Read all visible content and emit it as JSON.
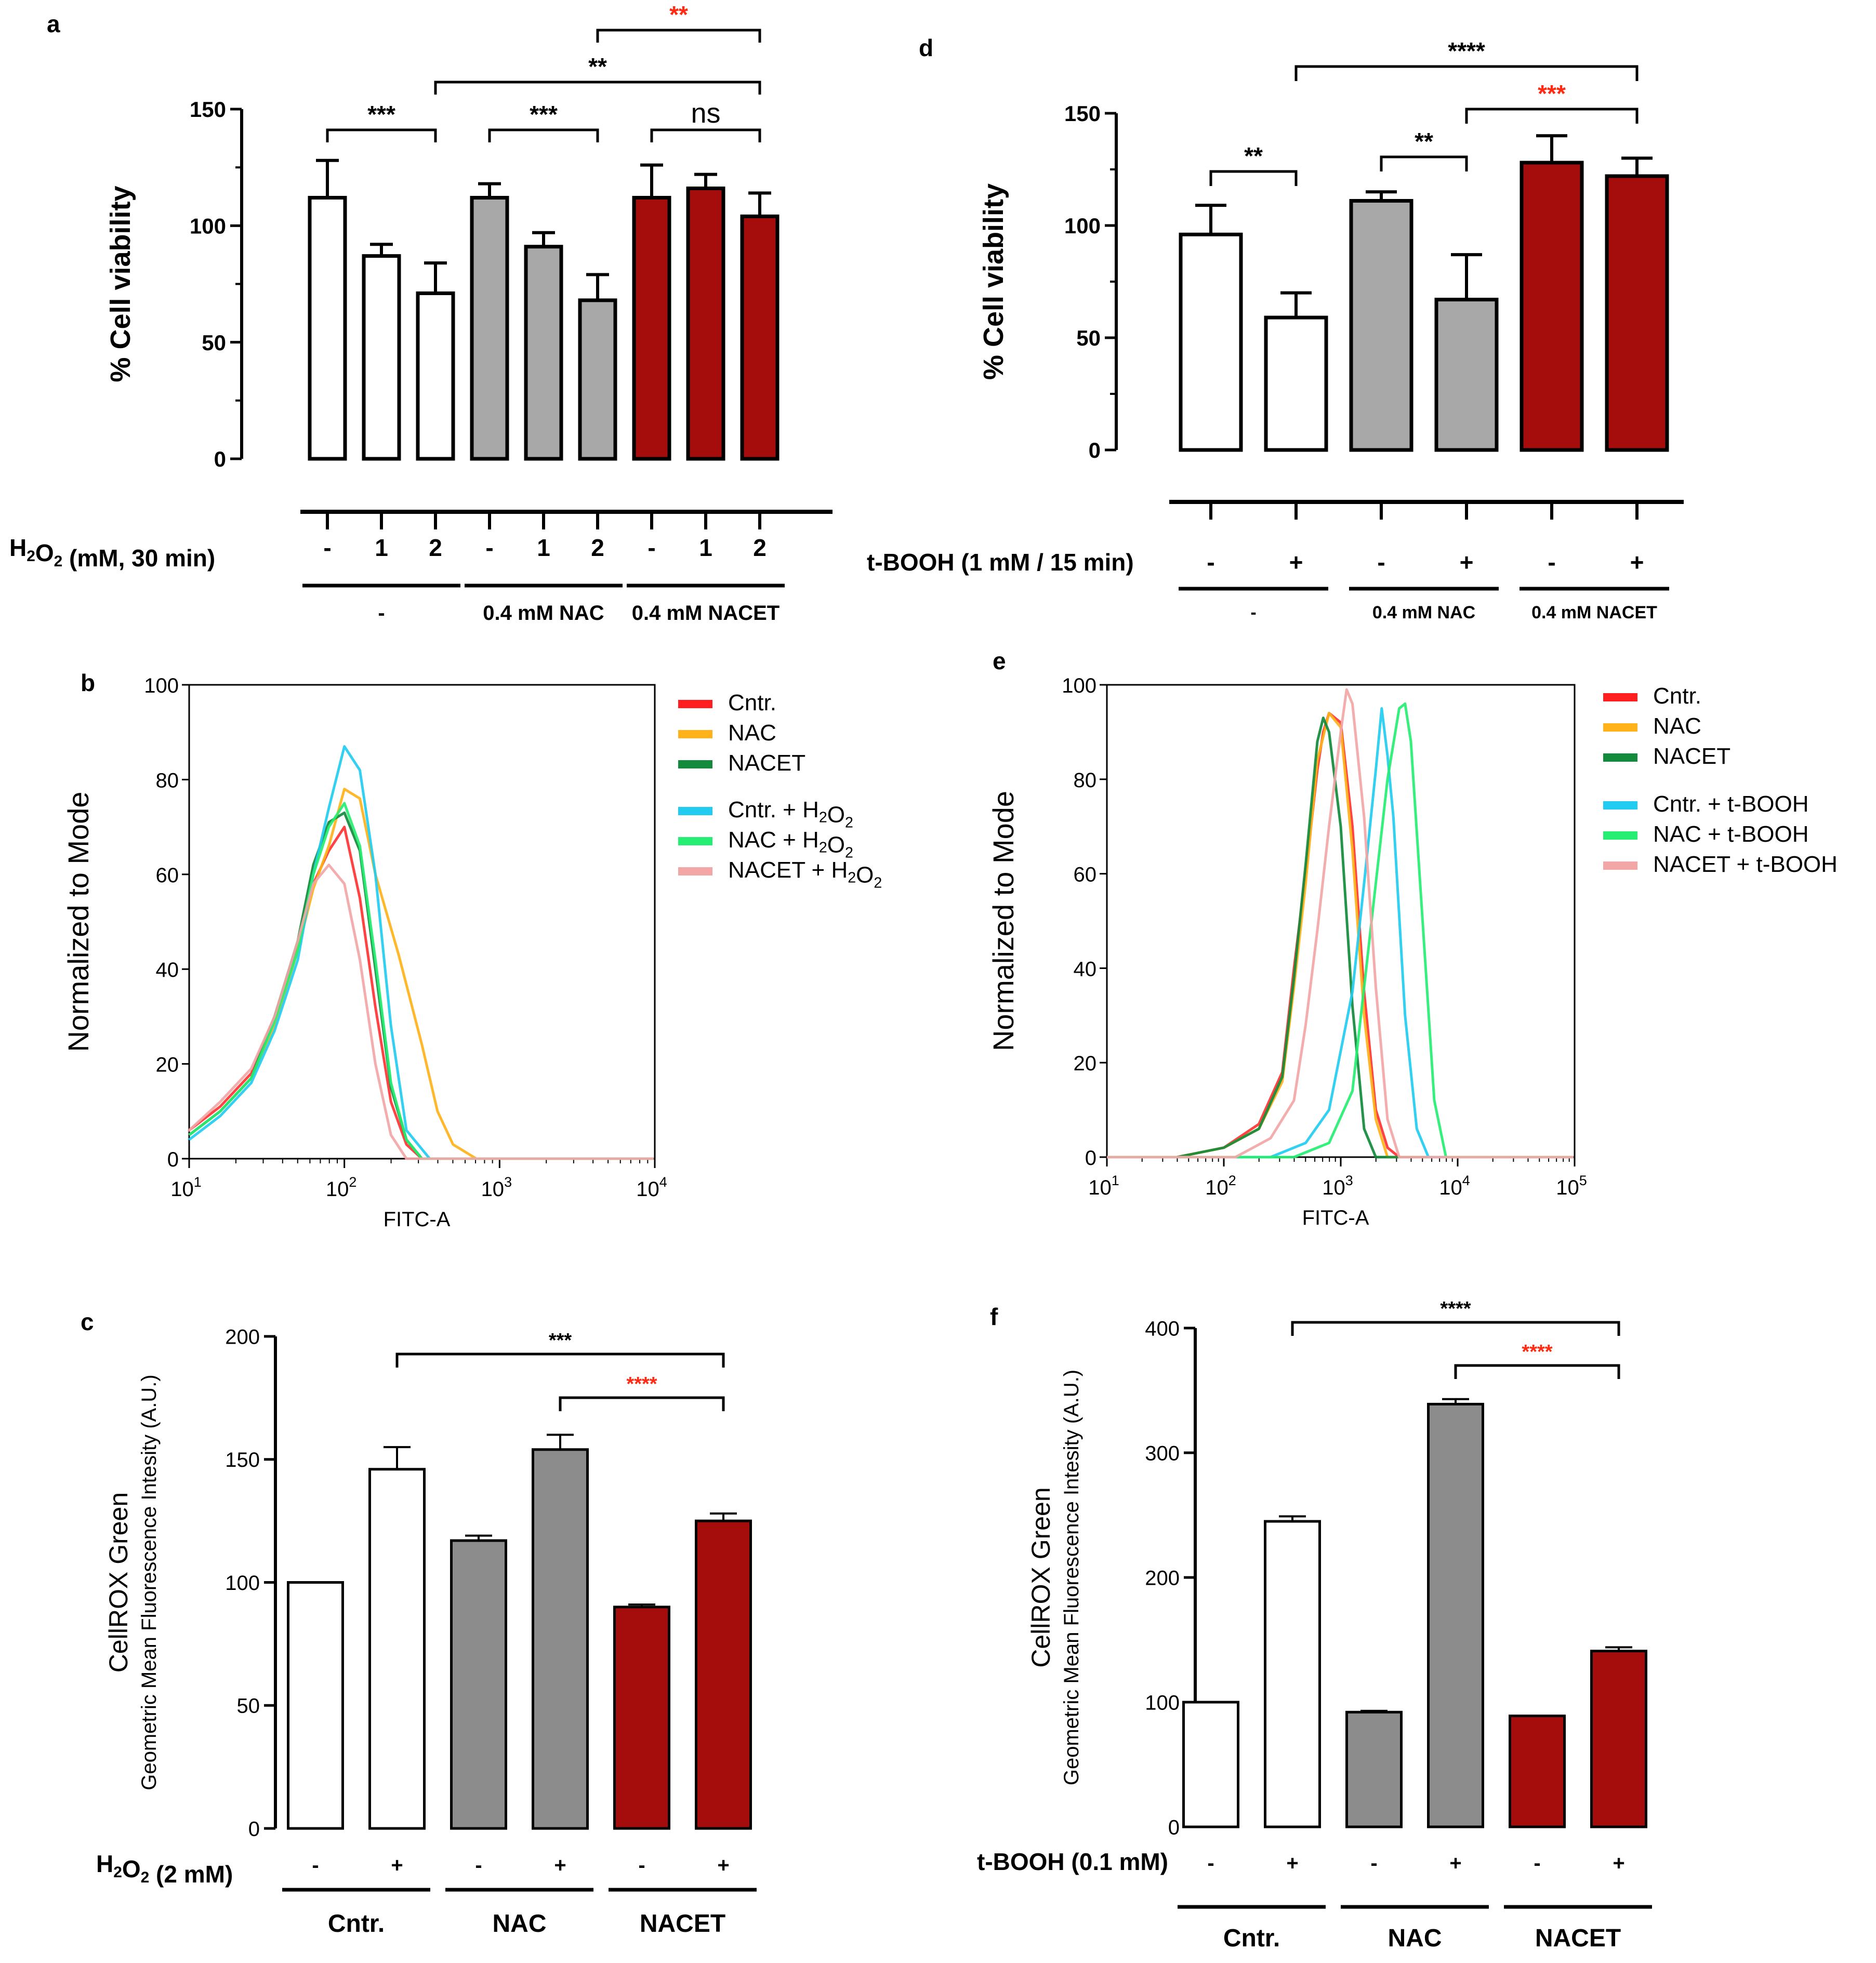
{
  "colors": {
    "white": "#ffffff",
    "gray": "#a8a8a8",
    "gray_dark": "#8c8c8c",
    "red": "#a50d0d",
    "black": "#000000",
    "sig_red": "#ff2a12"
  },
  "chart_data": [
    {
      "panel": "a",
      "type": "bar",
      "ylabel": "% Cell viability",
      "ylim": [
        0,
        150
      ],
      "yticks": [
        "0",
        "50",
        "100",
        "150"
      ],
      "row_label": "H₂O₂ (mM, 30 min)",
      "groups": [
        "-",
        "0.4 mM NAC",
        "0.4 mM NACET"
      ],
      "bars": [
        {
          "name": "cntr-0",
          "tick": "-",
          "value": 112,
          "err": 16,
          "color": "white"
        },
        {
          "name": "cntr-1",
          "tick": "1",
          "value": 87,
          "err": 5,
          "color": "white"
        },
        {
          "name": "cntr-2",
          "tick": "2",
          "value": 71,
          "err": 13,
          "color": "white"
        },
        {
          "name": "nac-0",
          "tick": "-",
          "value": 112,
          "err": 6,
          "color": "gray"
        },
        {
          "name": "nac-1",
          "tick": "1",
          "value": 91,
          "err": 6,
          "color": "gray"
        },
        {
          "name": "nac-2",
          "tick": "2",
          "value": 68,
          "err": 11,
          "color": "gray"
        },
        {
          "name": "nacet-0",
          "tick": "-",
          "value": 112,
          "err": 14,
          "color": "red"
        },
        {
          "name": "nacet-1",
          "tick": "1",
          "value": 116,
          "err": 6,
          "color": "red"
        },
        {
          "name": "nacet-2",
          "tick": "2",
          "value": 104,
          "err": 10,
          "color": "red"
        }
      ],
      "significance": [
        {
          "from": 0,
          "to": 2,
          "label": "***",
          "color": "black"
        },
        {
          "from": 3,
          "to": 5,
          "label": "***",
          "color": "black"
        },
        {
          "from": 6,
          "to": 8,
          "label": "ns",
          "color": "black"
        },
        {
          "from": 2,
          "to": 8,
          "label": "**",
          "color": "black"
        },
        {
          "from": 5,
          "to": 8,
          "label": "**",
          "color": "red"
        }
      ]
    },
    {
      "panel": "d",
      "type": "bar",
      "ylabel": "% Cell viability",
      "ylim": [
        0,
        150
      ],
      "yticks": [
        "0",
        "50",
        "100",
        "150"
      ],
      "row_label": "t-BOOH (1 mM / 15 min)",
      "groups": [
        "-",
        "0.4 mM NAC",
        "0.4 mM NACET"
      ],
      "bars": [
        {
          "name": "cntr-minus",
          "tick": "-",
          "value": 96,
          "err": 13,
          "color": "white"
        },
        {
          "name": "cntr-plus",
          "tick": "+",
          "value": 59,
          "err": 11,
          "color": "white"
        },
        {
          "name": "nac-minus",
          "tick": "-",
          "value": 111,
          "err": 4,
          "color": "gray"
        },
        {
          "name": "nac-plus",
          "tick": "+",
          "value": 67,
          "err": 20,
          "color": "gray"
        },
        {
          "name": "nacet-minus",
          "tick": "-",
          "value": 128,
          "err": 12,
          "color": "red"
        },
        {
          "name": "nacet-plus",
          "tick": "+",
          "value": 122,
          "err": 8,
          "color": "red"
        }
      ],
      "significance": [
        {
          "from": 0,
          "to": 1,
          "label": "**",
          "color": "black"
        },
        {
          "from": 2,
          "to": 3,
          "label": "**",
          "color": "black"
        },
        {
          "from": 3,
          "to": 5,
          "label": "***",
          "color": "red"
        },
        {
          "from": 1,
          "to": 5,
          "label": "****",
          "color": "black"
        }
      ]
    },
    {
      "panel": "b",
      "type": "line",
      "xlabel": "FITC-A",
      "ylabel": "Normalized to Mode",
      "xscale": "log",
      "xlim": [
        1,
        4
      ],
      "xticks": [
        "10",
        "10",
        "10",
        "10"
      ],
      "xtick_exp": [
        "1",
        "2",
        "3",
        "4"
      ],
      "ylim": [
        0,
        100
      ],
      "yticks": [
        "0",
        "20",
        "40",
        "60",
        "80",
        "100"
      ],
      "legend": [
        "Cntr.",
        "NAC",
        "NACET",
        "Cntr. + H₂O₂",
        "NAC + H₂O₂",
        "NACET + H₂O₂"
      ],
      "legend_colors": [
        "#ff1f1f",
        "#ffb21a",
        "#138a3c",
        "#22ccf0",
        "#26ee72",
        "#f2a6a6"
      ],
      "series": [
        {
          "name": "Cntr.",
          "color": "#ff3333",
          "x": [
            1.0,
            1.2,
            1.4,
            1.55,
            1.7,
            1.8,
            1.9,
            2.0,
            2.1,
            2.2,
            2.3,
            2.4,
            2.5
          ],
          "y": [
            6,
            11,
            18,
            30,
            45,
            58,
            65,
            70,
            55,
            32,
            12,
            3,
            0
          ]
        },
        {
          "name": "NAC",
          "color": "#ffb21a",
          "x": [
            1.0,
            1.2,
            1.4,
            1.55,
            1.7,
            1.8,
            1.9,
            2.0,
            2.1,
            2.2,
            2.35,
            2.5,
            2.6,
            2.7,
            2.85
          ],
          "y": [
            5,
            10,
            17,
            28,
            44,
            57,
            66,
            78,
            76,
            60,
            43,
            24,
            10,
            3,
            0
          ]
        },
        {
          "name": "NACET",
          "color": "#138a3c",
          "x": [
            1.0,
            1.2,
            1.4,
            1.55,
            1.7,
            1.8,
            1.9,
            2.0,
            2.1,
            2.2,
            2.3,
            2.4,
            2.5
          ],
          "y": [
            5,
            10,
            17,
            30,
            46,
            62,
            71,
            73,
            65,
            40,
            15,
            4,
            0
          ]
        },
        {
          "name": "Cntr. + H₂O₂",
          "color": "#22ccf0",
          "x": [
            1.0,
            1.2,
            1.4,
            1.55,
            1.7,
            1.8,
            1.9,
            2.0,
            2.1,
            2.2,
            2.3,
            2.4,
            2.55
          ],
          "y": [
            4,
            9,
            16,
            27,
            42,
            60,
            74,
            87,
            82,
            60,
            28,
            6,
            0
          ]
        },
        {
          "name": "NAC + H₂O₂",
          "color": "#26ee72",
          "x": [
            1.0,
            1.2,
            1.4,
            1.55,
            1.7,
            1.8,
            1.9,
            2.0,
            2.1,
            2.2,
            2.3,
            2.4,
            2.5
          ],
          "y": [
            5,
            10,
            17,
            29,
            44,
            60,
            70,
            75,
            66,
            42,
            16,
            4,
            0
          ]
        },
        {
          "name": "NACET + H₂O₂",
          "color": "#f2a6a6",
          "x": [
            1.0,
            1.2,
            1.4,
            1.55,
            1.7,
            1.8,
            1.9,
            2.0,
            2.1,
            2.2,
            2.3,
            2.4
          ],
          "y": [
            6,
            12,
            19,
            30,
            46,
            58,
            62,
            58,
            42,
            20,
            5,
            0
          ]
        }
      ]
    },
    {
      "panel": "e",
      "type": "line",
      "xlabel": "FITC-A",
      "ylabel": "Normalized to Mode",
      "xscale": "log",
      "xlim": [
        1,
        5
      ],
      "xticks": [
        "10",
        "10",
        "10",
        "10",
        "10"
      ],
      "xtick_exp": [
        "1",
        "2",
        "3",
        "4",
        "5"
      ],
      "ylim": [
        0,
        100
      ],
      "yticks": [
        "0",
        "20",
        "40",
        "60",
        "80",
        "100"
      ],
      "legend": [
        "Cntr.",
        "NAC",
        "NACET",
        "Cntr. + t-BOOH",
        "NAC + t-BOOH",
        "NACET + t-BOOH"
      ],
      "legend_colors": [
        "#ff1f1f",
        "#ffb21a",
        "#138a3c",
        "#22ccf0",
        "#26ee72",
        "#f2a6a6"
      ],
      "series": [
        {
          "name": "Cntr.",
          "color": "#ff3333",
          "x": [
            1.6,
            2.0,
            2.3,
            2.5,
            2.6,
            2.7,
            2.8,
            2.85,
            2.9,
            3.0,
            3.1,
            3.2,
            3.3,
            3.4,
            3.5
          ],
          "y": [
            0,
            2,
            7,
            18,
            40,
            60,
            82,
            90,
            94,
            92,
            70,
            35,
            10,
            2,
            0
          ]
        },
        {
          "name": "NAC",
          "color": "#ffb21a",
          "x": [
            1.6,
            2.0,
            2.3,
            2.5,
            2.6,
            2.7,
            2.8,
            2.9,
            3.0,
            3.1,
            3.2,
            3.3,
            3.4
          ],
          "y": [
            0,
            2,
            6,
            16,
            36,
            58,
            84,
            94,
            91,
            65,
            30,
            8,
            0
          ]
        },
        {
          "name": "NACET",
          "color": "#138a3c",
          "x": [
            1.6,
            2.0,
            2.3,
            2.5,
            2.6,
            2.7,
            2.8,
            2.85,
            2.9,
            3.0,
            3.1,
            3.2,
            3.3
          ],
          "y": [
            0,
            2,
            6,
            17,
            38,
            62,
            88,
            93,
            90,
            70,
            32,
            6,
            0
          ]
        },
        {
          "name": "Cntr. + t-BOOH",
          "color": "#22ccf0",
          "x": [
            2.4,
            2.7,
            2.9,
            3.1,
            3.2,
            3.3,
            3.35,
            3.4,
            3.45,
            3.55,
            3.65,
            3.75
          ],
          "y": [
            0,
            3,
            10,
            35,
            58,
            82,
            95,
            85,
            72,
            30,
            6,
            0
          ]
        },
        {
          "name": "NAC + t-BOOH",
          "color": "#26ee72",
          "x": [
            2.6,
            2.9,
            3.1,
            3.2,
            3.3,
            3.4,
            3.5,
            3.55,
            3.6,
            3.7,
            3.8,
            3.9
          ],
          "y": [
            0,
            3,
            14,
            36,
            58,
            80,
            95,
            96,
            88,
            50,
            12,
            0
          ]
        },
        {
          "name": "NACET + t-BOOH",
          "color": "#f2a6a6",
          "x": [
            2.1,
            2.4,
            2.6,
            2.7,
            2.8,
            2.9,
            3.0,
            3.05,
            3.1,
            3.2,
            3.3,
            3.4,
            3.5
          ],
          "y": [
            0,
            4,
            12,
            28,
            48,
            70,
            90,
            99,
            96,
            72,
            36,
            8,
            0
          ]
        }
      ]
    },
    {
      "panel": "c",
      "type": "bar",
      "ylabel_line1": "CellROX Green",
      "ylabel_line2": "Geometric Mean Fluorescence Intesity (A.U.)",
      "ylim": [
        0,
        200
      ],
      "yticks": [
        "0",
        "50",
        "100",
        "150",
        "200"
      ],
      "row_label": "H₂O₂ (2 mM)",
      "groups": [
        "Cntr.",
        "NAC",
        "NACET"
      ],
      "bars": [
        {
          "name": "cntr-minus",
          "tick": "-",
          "value": 100,
          "err": 0,
          "color": "white"
        },
        {
          "name": "cntr-plus",
          "tick": "+",
          "value": 146,
          "err": 9,
          "color": "white"
        },
        {
          "name": "nac-minus",
          "tick": "-",
          "value": 117,
          "err": 2,
          "color": "gray_dark"
        },
        {
          "name": "nac-plus",
          "tick": "+",
          "value": 154,
          "err": 6,
          "color": "gray_dark"
        },
        {
          "name": "nacet-minus",
          "tick": "-",
          "value": 90,
          "err": 1,
          "color": "red"
        },
        {
          "name": "nacet-plus",
          "tick": "+",
          "value": 125,
          "err": 3,
          "color": "red"
        }
      ],
      "significance": [
        {
          "from": 3,
          "to": 5,
          "label": "****",
          "color": "red"
        },
        {
          "from": 1,
          "to": 5,
          "label": "***",
          "color": "black"
        }
      ]
    },
    {
      "panel": "f",
      "type": "bar",
      "ylabel_line1": "CellROX Green",
      "ylabel_line2": "Geometric Mean Fluorescence Intesity (A.U.)",
      "ylim": [
        0,
        400
      ],
      "yticks": [
        "0",
        "100",
        "200",
        "300",
        "400"
      ],
      "row_label": "t-BOOH (0.1 mM)",
      "groups": [
        "Cntr.",
        "NAC",
        "NACET"
      ],
      "bars": [
        {
          "name": "cntr-minus",
          "tick": "-",
          "value": 100,
          "err": 0,
          "color": "white"
        },
        {
          "name": "cntr-plus",
          "tick": "+",
          "value": 245,
          "err": 4,
          "color": "white"
        },
        {
          "name": "nac-minus",
          "tick": "-",
          "value": 92,
          "err": 1,
          "color": "gray_dark"
        },
        {
          "name": "nac-plus",
          "tick": "+",
          "value": 339,
          "err": 4,
          "color": "gray_dark"
        },
        {
          "name": "nacet-minus",
          "tick": "-",
          "value": 89,
          "err": 0,
          "color": "red"
        },
        {
          "name": "nacet-plus",
          "tick": "+",
          "value": 141,
          "err": 3,
          "color": "red"
        }
      ],
      "significance": [
        {
          "from": 3,
          "to": 5,
          "label": "****",
          "color": "red"
        },
        {
          "from": 1,
          "to": 5,
          "label": "****",
          "color": "black"
        }
      ]
    }
  ]
}
